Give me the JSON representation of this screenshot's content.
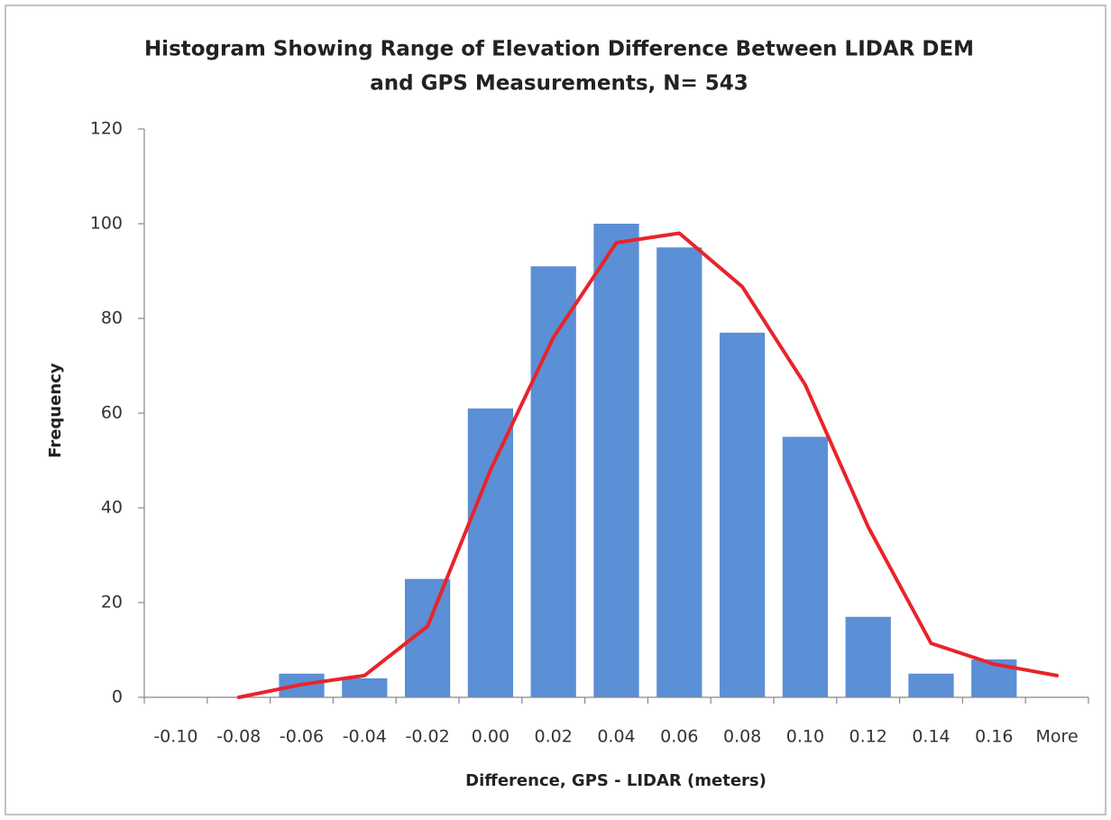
{
  "chart_data": {
    "type": "bar",
    "title": [
      "Histogram Showing Range of Elevation Difference Between LIDAR DEM",
      "and GPS Measurements, N= 543"
    ],
    "x_label": "Difference, GPS - LIDAR (meters)",
    "y_label": "Frequency",
    "categories": [
      "-0.10",
      "-0.08",
      "-0.06",
      "-0.04",
      "-0.02",
      "0.00",
      "0.02",
      "0.04",
      "0.06",
      "0.08",
      "0.10",
      "0.12",
      "0.14",
      "0.16",
      "More"
    ],
    "series": [
      {
        "type": "bar",
        "color": "#5b8fd6",
        "values": [
          0,
          0,
          5,
          4,
          25,
          61,
          91,
          100,
          95,
          77,
          55,
          17,
          5,
          8,
          0
        ]
      },
      {
        "type": "line",
        "color": "#e8242b",
        "values": [
          null,
          0,
          2.7,
          4.6,
          15,
          48,
          76,
          96,
          98,
          86.7,
          66,
          36,
          11.4,
          7,
          4.6
        ]
      }
    ],
    "ylim": [
      0,
      120
    ],
    "yticks": [
      0,
      20,
      40,
      60,
      80,
      100,
      120
    ],
    "grid": false
  }
}
